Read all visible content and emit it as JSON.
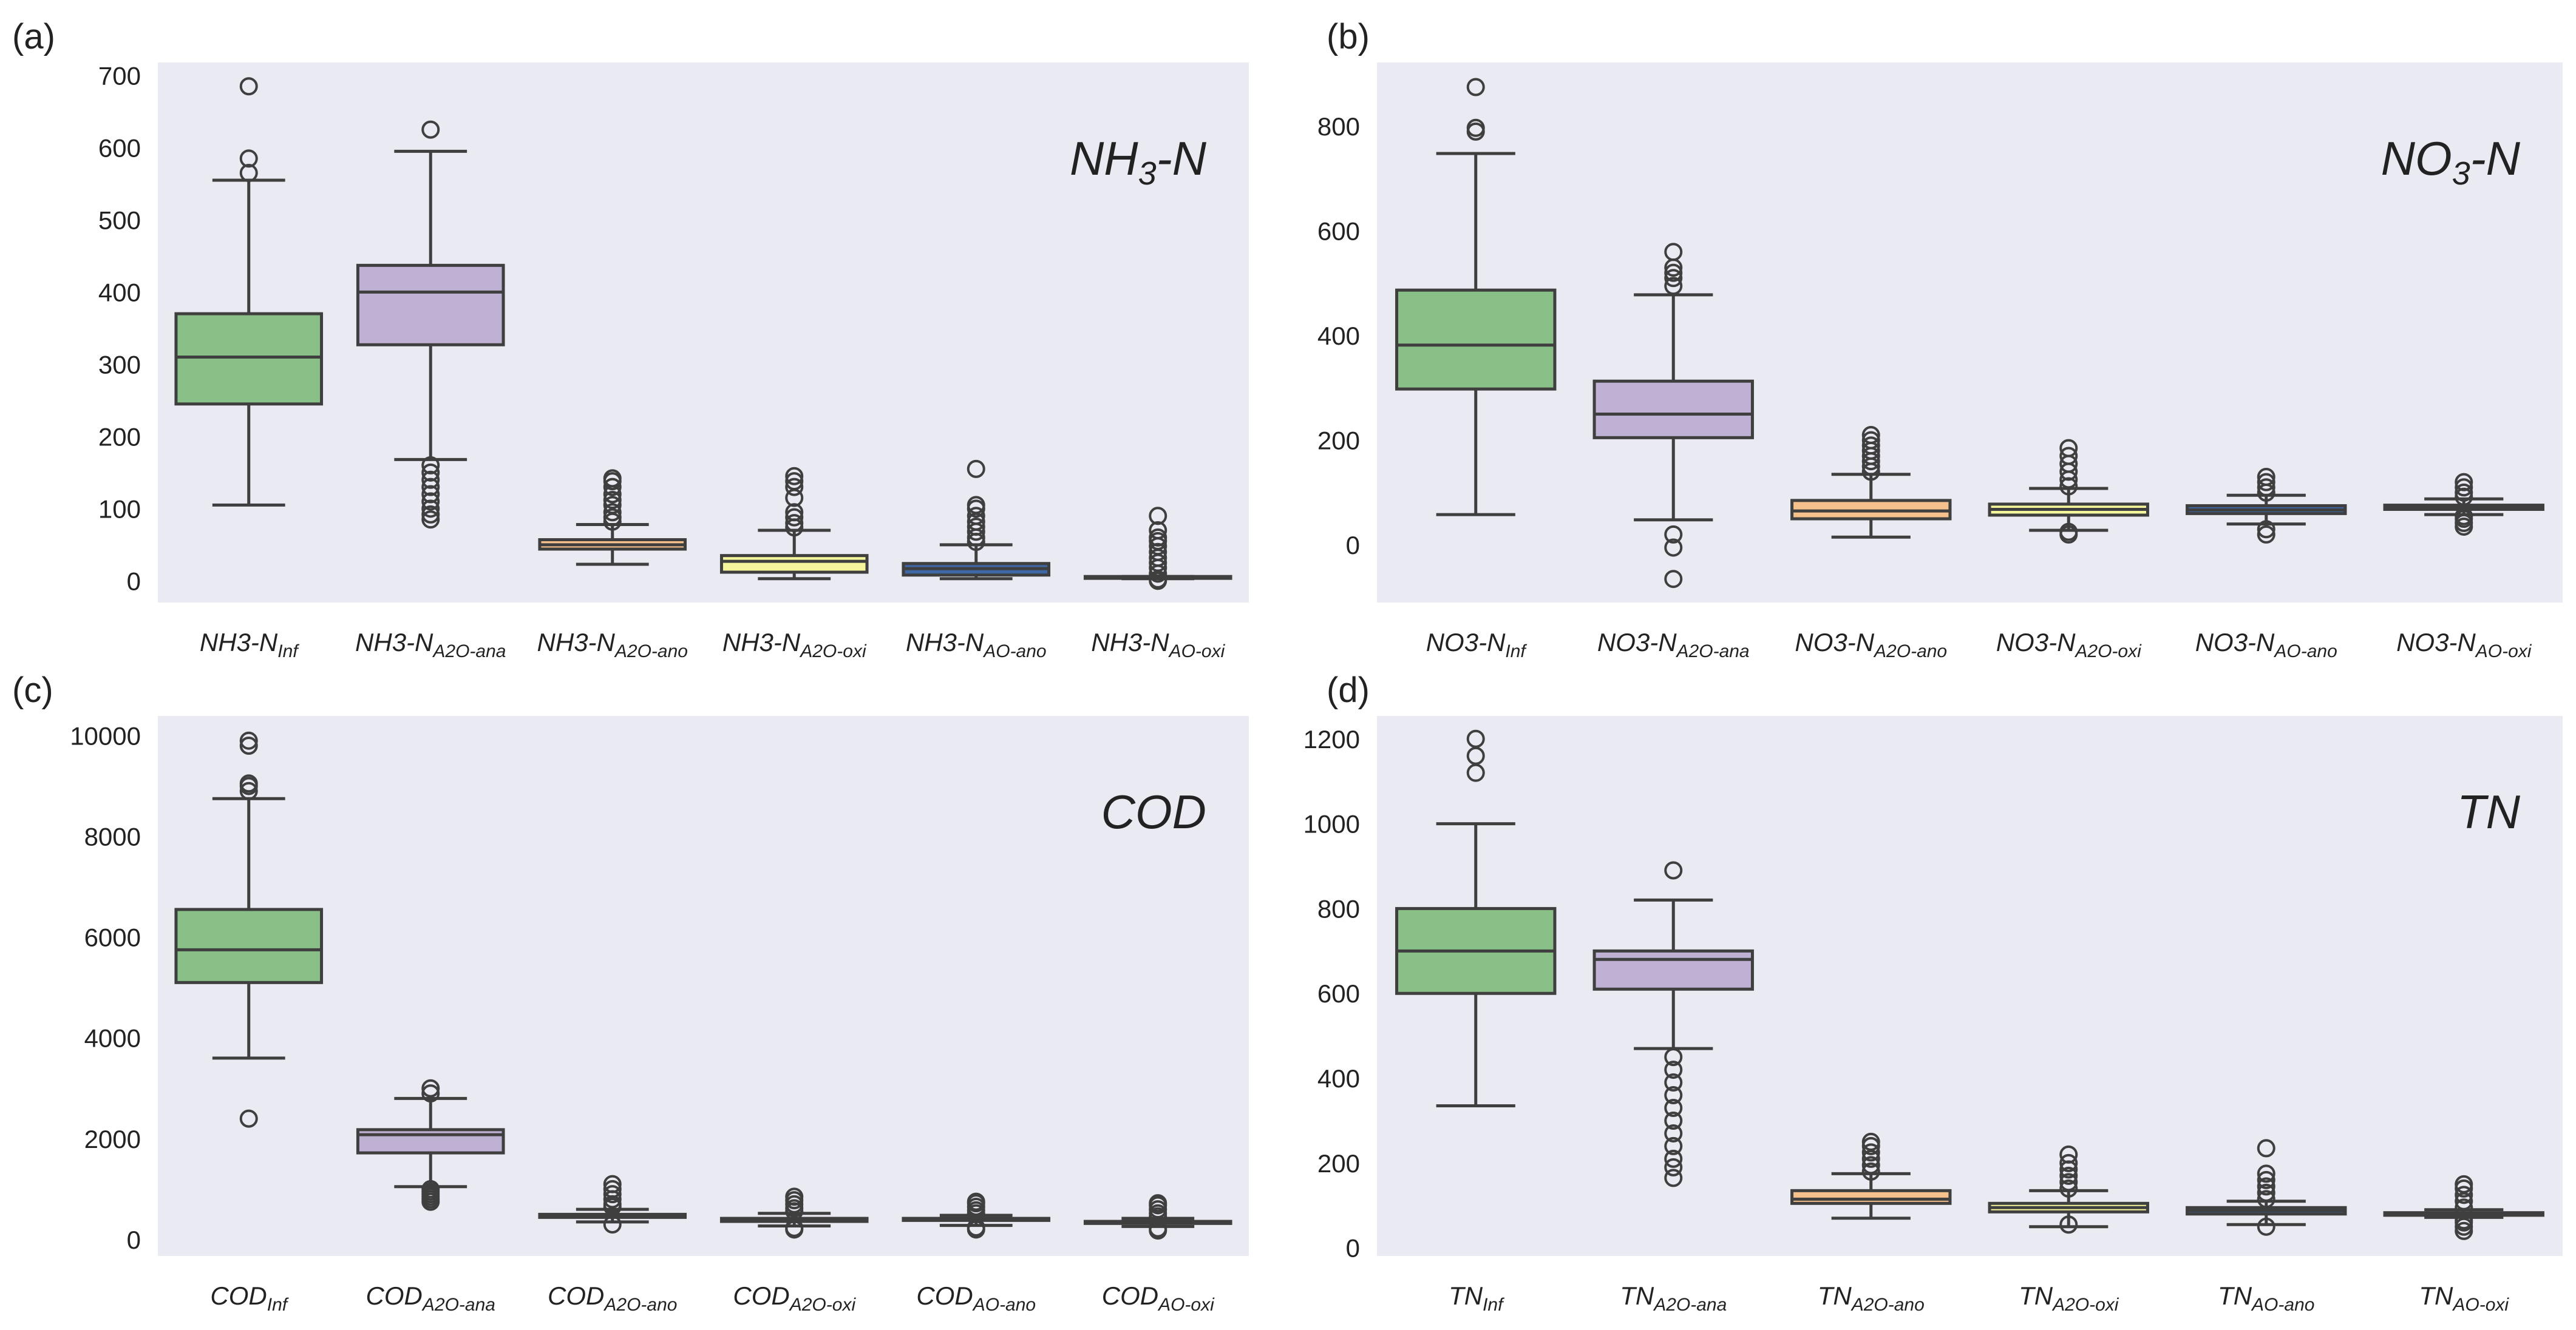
{
  "chart_data": [
    {
      "type": "box",
      "panel_label": "(a)",
      "title": {
        "base": "NH",
        "sub": "3",
        "rest": "-N"
      },
      "ylim": [
        -30,
        718
      ],
      "yticks": [
        0,
        100,
        200,
        300,
        400,
        500,
        600,
        700
      ],
      "grid": false,
      "categories": [
        {
          "base": "NH3-N",
          "sub": "Inf"
        },
        {
          "base": "NH3-N",
          "sub": "A2O-ana"
        },
        {
          "base": "NH3-N",
          "sub": "A2O-ano"
        },
        {
          "base": "NH3-N",
          "sub": "A2O-oxi"
        },
        {
          "base": "NH3-N",
          "sub": "AO-ano"
        },
        {
          "base": "NH3-N",
          "sub": "AO-oxi"
        }
      ],
      "boxes": [
        {
          "whislo": 105,
          "q1": 245,
          "med": 310,
          "q3": 370,
          "whishi": 555,
          "fliers": [
            565,
            585,
            685
          ]
        },
        {
          "whislo": 168,
          "q1": 327,
          "med": 400,
          "q3": 437,
          "whishi": 595,
          "fliers": [
            625,
            160,
            150,
            140,
            130,
            120,
            110,
            100,
            92,
            85
          ]
        },
        {
          "whislo": 23,
          "q1": 44,
          "med": 50,
          "q3": 57,
          "whishi": 78,
          "fliers": [
            82,
            88,
            95,
            105,
            112,
            120,
            130,
            138,
            142
          ]
        },
        {
          "whislo": 3,
          "q1": 12,
          "med": 27,
          "q3": 35,
          "whishi": 70,
          "fliers": [
            74,
            80,
            88,
            95,
            115,
            130,
            138,
            145
          ]
        },
        {
          "whislo": 3,
          "q1": 8,
          "med": 17,
          "q3": 24,
          "whishi": 50,
          "fliers": [
            54,
            60,
            68,
            75,
            82,
            90,
            100,
            105,
            155
          ]
        },
        {
          "whislo": 3,
          "q1": 4,
          "med": 5,
          "q3": 6,
          "whishi": 6,
          "fliers": [
            0,
            2,
            10,
            18,
            25,
            32,
            40,
            48,
            55,
            60,
            70,
            90
          ]
        }
      ]
    },
    {
      "type": "box",
      "panel_label": "(b)",
      "title": {
        "base": "NO",
        "sub": "3",
        "rest": "-N"
      },
      "ylim": [
        -110,
        922
      ],
      "yticks": [
        0,
        200,
        400,
        600,
        800
      ],
      "grid": false,
      "categories": [
        {
          "base": "NO3-N",
          "sub": "Inf"
        },
        {
          "base": "NO3-N",
          "sub": "A2O-ana"
        },
        {
          "base": "NO3-N",
          "sub": "A2O-ano"
        },
        {
          "base": "NO3-N",
          "sub": "A2O-oxi"
        },
        {
          "base": "NO3-N",
          "sub": "AO-ano"
        },
        {
          "base": "NO3-N",
          "sub": "AO-oxi"
        }
      ],
      "boxes": [
        {
          "whislo": 58,
          "q1": 298,
          "med": 382,
          "q3": 487,
          "whishi": 748,
          "fliers": [
            790,
            797,
            875
          ]
        },
        {
          "whislo": 48,
          "q1": 205,
          "med": 250,
          "q3": 313,
          "whishi": 478,
          "fliers": [
            495,
            510,
            520,
            530,
            560,
            20,
            -5,
            -65
          ]
        },
        {
          "whislo": 15,
          "q1": 50,
          "med": 65,
          "q3": 85,
          "whishi": 135,
          "fliers": [
            140,
            150,
            160,
            170,
            180,
            190,
            200,
            210
          ]
        },
        {
          "whislo": 28,
          "q1": 57,
          "med": 68,
          "q3": 78,
          "whishi": 108,
          "fliers": [
            20,
            25,
            112,
            125,
            140,
            155,
            170,
            185
          ]
        },
        {
          "whislo": 40,
          "q1": 60,
          "med": 67,
          "q3": 75,
          "whishi": 95,
          "fliers": [
            20,
            30,
            100,
            110,
            120,
            130
          ]
        },
        {
          "whislo": 58,
          "q1": 68,
          "med": 72,
          "q3": 76,
          "whishi": 88,
          "fliers": [
            35,
            42,
            50,
            55,
            92,
            100,
            110,
            120
          ]
        }
      ]
    },
    {
      "type": "box",
      "panel_label": "(c)",
      "title": {
        "base": "COD",
        "sub": "",
        "rest": ""
      },
      "ylim": [
        -326,
        10390
      ],
      "yticks": [
        0,
        2000,
        4000,
        6000,
        8000,
        10000
      ],
      "grid": false,
      "categories": [
        {
          "base": "COD",
          "sub": "Inf"
        },
        {
          "base": "COD",
          "sub": "A2O-ana"
        },
        {
          "base": "COD",
          "sub": "A2O-ano"
        },
        {
          "base": "COD",
          "sub": "A2O-oxi"
        },
        {
          "base": "COD",
          "sub": "AO-ano"
        },
        {
          "base": "COD",
          "sub": "AO-oxi"
        }
      ],
      "boxes": [
        {
          "whislo": 3600,
          "q1": 5100,
          "med": 5750,
          "q3": 6550,
          "whishi": 8750,
          "fliers": [
            2400,
            8900,
            9000,
            9050,
            9800,
            9900
          ]
        },
        {
          "whislo": 1050,
          "q1": 1720,
          "med": 2080,
          "q3": 2180,
          "whishi": 2800,
          "fliers": [
            750,
            800,
            850,
            900,
            950,
            1000,
            2900,
            3000
          ]
        },
        {
          "whislo": 350,
          "q1": 440,
          "med": 470,
          "q3": 500,
          "whishi": 600,
          "fliers": [
            300,
            650,
            700,
            800,
            900,
            1000,
            1100
          ]
        },
        {
          "whislo": 270,
          "q1": 360,
          "med": 390,
          "q3": 420,
          "whishi": 520,
          "fliers": [
            200,
            230,
            560,
            620,
            700,
            780,
            850
          ]
        },
        {
          "whislo": 280,
          "q1": 380,
          "med": 400,
          "q3": 420,
          "whishi": 480,
          "fliers": [
            200,
            240,
            520,
            580,
            650,
            720,
            750
          ]
        },
        {
          "whislo": 260,
          "q1": 320,
          "med": 340,
          "q3": 360,
          "whishi": 420,
          "fliers": [
            180,
            220,
            460,
            520,
            600,
            680,
            720
          ]
        }
      ]
    },
    {
      "type": "box",
      "panel_label": "(d)",
      "title": {
        "base": "TN",
        "sub": "",
        "rest": ""
      },
      "ylim": [
        -19,
        1254
      ],
      "yticks": [
        0,
        200,
        400,
        600,
        800,
        1000,
        1200
      ],
      "grid": false,
      "categories": [
        {
          "base": "TN",
          "sub": "Inf"
        },
        {
          "base": "TN",
          "sub": "A2O-ana"
        },
        {
          "base": "TN",
          "sub": "A2O-ano"
        },
        {
          "base": "TN",
          "sub": "A2O-oxi"
        },
        {
          "base": "TN",
          "sub": "AO-ano"
        },
        {
          "base": "TN",
          "sub": "AO-oxi"
        }
      ],
      "boxes": [
        {
          "whislo": 335,
          "q1": 600,
          "med": 700,
          "q3": 800,
          "whishi": 1000,
          "fliers": [
            1120,
            1160,
            1200
          ]
        },
        {
          "whislo": 470,
          "q1": 610,
          "med": 680,
          "q3": 700,
          "whishi": 820,
          "fliers": [
            890,
            450,
            420,
            390,
            360,
            330,
            300,
            270,
            240,
            210,
            190,
            165
          ]
        },
        {
          "whislo": 70,
          "q1": 105,
          "med": 115,
          "q3": 135,
          "whishi": 175,
          "fliers": [
            180,
            195,
            210,
            225,
            240,
            250
          ]
        },
        {
          "whislo": 50,
          "q1": 85,
          "med": 95,
          "q3": 105,
          "whishi": 135,
          "fliers": [
            55,
            140,
            155,
            170,
            185,
            200,
            220
          ]
        },
        {
          "whislo": 55,
          "q1": 80,
          "med": 88,
          "q3": 95,
          "whishi": 110,
          "fliers": [
            50,
            115,
            130,
            145,
            160,
            175,
            235
          ]
        },
        {
          "whislo": 72,
          "q1": 77,
          "med": 80,
          "q3": 83,
          "whishi": 90,
          "fliers": [
            40,
            50,
            60,
            65,
            95,
            110,
            125,
            140,
            150
          ]
        }
      ]
    }
  ],
  "colors": {
    "box_fills": [
      "#88c088",
      "#bfb1d3",
      "#f5c08c",
      "#f5f59c",
      "#3e67a4",
      "#d2266f"
    ],
    "plot_bg": "#eaeaf2",
    "line": "#3f3f3f"
  }
}
